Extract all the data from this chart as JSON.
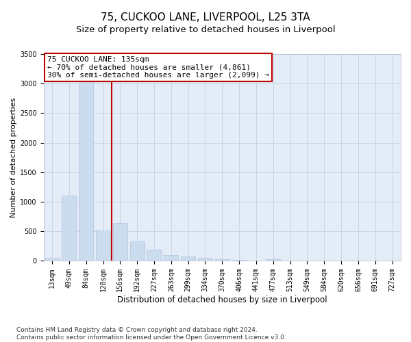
{
  "title1": "75, CUCKOO LANE, LIVERPOOL, L25 3TA",
  "title2": "Size of property relative to detached houses in Liverpool",
  "xlabel": "Distribution of detached houses by size in Liverpool",
  "ylabel": "Number of detached properties",
  "categories": [
    "13sqm",
    "49sqm",
    "84sqm",
    "120sqm",
    "156sqm",
    "192sqm",
    "227sqm",
    "263sqm",
    "299sqm",
    "334sqm",
    "370sqm",
    "406sqm",
    "441sqm",
    "477sqm",
    "513sqm",
    "549sqm",
    "584sqm",
    "620sqm",
    "656sqm",
    "691sqm",
    "727sqm"
  ],
  "values": [
    50,
    1100,
    3050,
    520,
    640,
    330,
    190,
    100,
    80,
    50,
    30,
    20,
    10,
    30,
    10,
    5,
    10,
    5,
    5,
    3,
    2
  ],
  "bar_color": "#ccdcef",
  "bar_edgecolor": "#adc4de",
  "vline_x_index": 3,
  "vline_color": "#bb0000",
  "annotation_text": "75 CUCKOO LANE: 135sqm\n← 70% of detached houses are smaller (4,861)\n30% of semi-detached houses are larger (2,099) →",
  "annotation_box_facecolor": "#ffffff",
  "annotation_box_edgecolor": "#bb0000",
  "ylim": [
    0,
    3500
  ],
  "yticks": [
    0,
    500,
    1000,
    1500,
    2000,
    2500,
    3000,
    3500
  ],
  "bg_color": "#ffffff",
  "plot_bg_color": "#e4ecf7",
  "grid_color": "#c8d4e8",
  "footnote": "Contains HM Land Registry data © Crown copyright and database right 2024.\nContains public sector information licensed under the Open Government Licence v3.0.",
  "title1_fontsize": 11,
  "title2_fontsize": 9.5,
  "xlabel_fontsize": 8.5,
  "ylabel_fontsize": 8,
  "tick_fontsize": 7,
  "annot_fontsize": 8,
  "footnote_fontsize": 6.5
}
